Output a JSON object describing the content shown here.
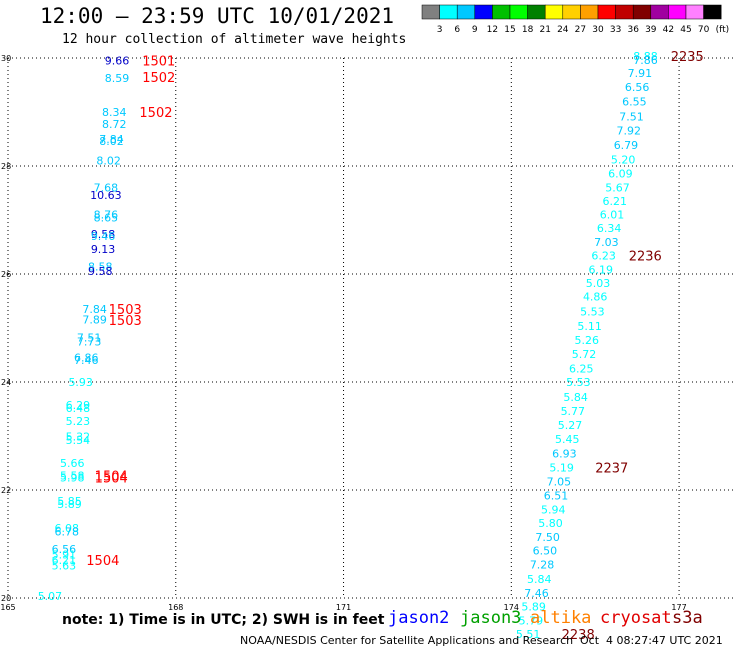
{
  "header": {
    "title": "12:00 – 23:59 UTC 10/01/2021",
    "subtitle": "12 hour collection of altimeter wave heights"
  },
  "legend": {
    "labels": [
      "3",
      "6",
      "9",
      "12",
      "15",
      "18",
      "21",
      "24",
      "27",
      "30",
      "33",
      "36",
      "39",
      "42",
      "45",
      "70"
    ],
    "unit": "(ft)",
    "colors": [
      "#808080",
      "#00ffff",
      "#00c8ff",
      "#0000ff",
      "#00c000",
      "#00ff00",
      "#008000",
      "#ffff00",
      "#ffd000",
      "#ffa000",
      "#ff0000",
      "#c00000",
      "#800000",
      "#a000a0",
      "#ff00ff",
      "#ff80ff",
      "#000000"
    ]
  },
  "footer": {
    "note": "note: 1) Time is in UTC; 2) SWH is in feet",
    "credit": "NOAA/NESDIS Center for Satellite Applications and Research",
    "stamp": "Oct  4 08:27:47 UTC 2021"
  },
  "satellites": [
    {
      "name": "jason2",
      "color": "#0000ff"
    },
    {
      "name": "jason3",
      "color": "#00a000"
    },
    {
      "name": "altika",
      "color": "#ff8000"
    },
    {
      "name": "cryosat",
      "color": "#e00000"
    },
    {
      "name": "s3a",
      "color": "#800000"
    }
  ],
  "chart_data": {
    "type": "scatter",
    "xlim": [
      165,
      178
    ],
    "ylim": [
      20,
      30
    ],
    "x_ticks": [
      165,
      168,
      171,
      174,
      177
    ],
    "x_tick_labels": [
      "165",
      "168",
      "171",
      "174",
      "177"
    ],
    "y_ticks": [
      20,
      22,
      24,
      26,
      28,
      30
    ],
    "y_tick_labels": [
      "20",
      "22",
      "24",
      "26",
      "28",
      "30"
    ],
    "grid": true,
    "observations": [
      {
        "x": 166.95,
        "y": 29.95,
        "label": "9.66",
        "color": "#0000c8"
      },
      {
        "x": 166.95,
        "y": 29.63,
        "label": "8.59",
        "color": "#00c8ff"
      },
      {
        "x": 166.9,
        "y": 29.0,
        "label": "8.34",
        "color": "#00c8ff"
      },
      {
        "x": 166.9,
        "y": 28.78,
        "label": "8.72",
        "color": "#00c8ff"
      },
      {
        "x": 166.85,
        "y": 28.5,
        "label": "7.84",
        "color": "#00c8ff"
      },
      {
        "x": 166.85,
        "y": 28.46,
        "label": "8.02",
        "color": "#00c8ff"
      },
      {
        "x": 166.8,
        "y": 28.1,
        "label": "8.02",
        "color": "#00c8ff"
      },
      {
        "x": 166.75,
        "y": 27.6,
        "label": "7.68",
        "color": "#00c8ff"
      },
      {
        "x": 166.75,
        "y": 27.46,
        "label": "10.63",
        "color": "#0000c8"
      },
      {
        "x": 166.75,
        "y": 27.1,
        "label": "8.76",
        "color": "#00c8ff"
      },
      {
        "x": 166.75,
        "y": 27.05,
        "label": "8.65",
        "color": "#00c8ff"
      },
      {
        "x": 166.7,
        "y": 26.74,
        "label": "9.58",
        "color": "#0000c8"
      },
      {
        "x": 166.7,
        "y": 26.7,
        "label": "9.46",
        "color": "#00c8ff"
      },
      {
        "x": 166.7,
        "y": 26.46,
        "label": "9.13",
        "color": "#0000c8"
      },
      {
        "x": 166.65,
        "y": 26.14,
        "label": "8.58",
        "color": "#00c8ff"
      },
      {
        "x": 166.65,
        "y": 26.06,
        "label": "9.58",
        "color": "#0000c8"
      },
      {
        "x": 166.55,
        "y": 25.35,
        "label": "7.84",
        "color": "#00c8ff"
      },
      {
        "x": 166.55,
        "y": 25.16,
        "label": "7.89",
        "color": "#00c8ff"
      },
      {
        "x": 166.45,
        "y": 24.82,
        "label": "7.51",
        "color": "#00c8ff"
      },
      {
        "x": 166.45,
        "y": 24.75,
        "label": "7.73",
        "color": "#00c8ff"
      },
      {
        "x": 166.4,
        "y": 24.45,
        "label": "6.86",
        "color": "#00c8ff"
      },
      {
        "x": 166.4,
        "y": 24.41,
        "label": "7.46",
        "color": "#00c8ff"
      },
      {
        "x": 166.3,
        "y": 24.0,
        "label": "5.93",
        "color": "#00ffff"
      },
      {
        "x": 166.25,
        "y": 23.57,
        "label": "6.29",
        "color": "#00ffff"
      },
      {
        "x": 166.25,
        "y": 23.52,
        "label": "6.48",
        "color": "#00ffff"
      },
      {
        "x": 166.25,
        "y": 23.28,
        "label": "5.23",
        "color": "#00ffff"
      },
      {
        "x": 166.25,
        "y": 22.99,
        "label": "5.32",
        "color": "#00ffff"
      },
      {
        "x": 166.25,
        "y": 22.93,
        "label": "5.54",
        "color": "#00ffff"
      },
      {
        "x": 166.15,
        "y": 22.5,
        "label": "5.66",
        "color": "#00ffff"
      },
      {
        "x": 166.15,
        "y": 22.27,
        "label": "5.58",
        "color": "#00ffff"
      },
      {
        "x": 166.15,
        "y": 22.23,
        "label": "5.98",
        "color": "#00ffff"
      },
      {
        "x": 166.1,
        "y": 21.8,
        "label": "5.85",
        "color": "#00ffff"
      },
      {
        "x": 166.1,
        "y": 21.74,
        "label": "5.89",
        "color": "#00ffff"
      },
      {
        "x": 166.05,
        "y": 21.3,
        "label": "6.08",
        "color": "#00ffff"
      },
      {
        "x": 166.05,
        "y": 21.23,
        "label": "6.78",
        "color": "#00c8ff"
      },
      {
        "x": 166.0,
        "y": 20.91,
        "label": "6.56",
        "color": "#00c8ff"
      },
      {
        "x": 166.0,
        "y": 20.81,
        "label": "5.91",
        "color": "#00ffff"
      },
      {
        "x": 166.0,
        "y": 20.7,
        "label": "6.21",
        "color": "#00ffff"
      },
      {
        "x": 166.0,
        "y": 20.6,
        "label": "5.63",
        "color": "#00ffff"
      },
      {
        "x": 165.75,
        "y": 20.04,
        "label": "5.07",
        "color": "#00ffff"
      },
      {
        "x": 176.4,
        "y": 30.04,
        "label": "8.88",
        "color": "#00ffff"
      },
      {
        "x": 176.4,
        "y": 29.96,
        "label": "7.86",
        "color": "#00c8ff"
      },
      {
        "x": 176.3,
        "y": 29.72,
        "label": "7.91",
        "color": "#00c8ff"
      },
      {
        "x": 176.25,
        "y": 29.46,
        "label": "6.56",
        "color": "#00c8ff"
      },
      {
        "x": 176.2,
        "y": 29.19,
        "label": "6.55",
        "color": "#00c8ff"
      },
      {
        "x": 176.15,
        "y": 28.92,
        "label": "7.51",
        "color": "#00c8ff"
      },
      {
        "x": 176.1,
        "y": 28.66,
        "label": "7.92",
        "color": "#00c8ff"
      },
      {
        "x": 176.05,
        "y": 28.39,
        "label": "6.79",
        "color": "#00c8ff"
      },
      {
        "x": 176.0,
        "y": 28.12,
        "label": "5.20",
        "color": "#00ffff"
      },
      {
        "x": 175.95,
        "y": 27.86,
        "label": "6.09",
        "color": "#00ffff"
      },
      {
        "x": 175.9,
        "y": 27.6,
        "label": "5.67",
        "color": "#00ffff"
      },
      {
        "x": 175.85,
        "y": 27.35,
        "label": "6.21",
        "color": "#00ffff"
      },
      {
        "x": 175.8,
        "y": 27.1,
        "label": "6.01",
        "color": "#00ffff"
      },
      {
        "x": 175.75,
        "y": 26.85,
        "label": "6.34",
        "color": "#00ffff"
      },
      {
        "x": 175.7,
        "y": 26.59,
        "label": "7.03",
        "color": "#00c8ff"
      },
      {
        "x": 175.65,
        "y": 26.34,
        "label": "6.23",
        "color": "#00ffff"
      },
      {
        "x": 175.6,
        "y": 26.08,
        "label": "6.19",
        "color": "#00ffff"
      },
      {
        "x": 175.55,
        "y": 25.83,
        "label": "5.03",
        "color": "#00ffff"
      },
      {
        "x": 175.5,
        "y": 25.58,
        "label": "4.86",
        "color": "#00ffff"
      },
      {
        "x": 175.45,
        "y": 25.31,
        "label": "5.53",
        "color": "#00ffff"
      },
      {
        "x": 175.4,
        "y": 25.04,
        "label": "5.11",
        "color": "#00ffff"
      },
      {
        "x": 175.35,
        "y": 24.78,
        "label": "5.26",
        "color": "#00ffff"
      },
      {
        "x": 175.3,
        "y": 24.52,
        "label": "5.72",
        "color": "#00ffff"
      },
      {
        "x": 175.25,
        "y": 24.25,
        "label": "6.25",
        "color": "#00ffff"
      },
      {
        "x": 175.2,
        "y": 24.0,
        "label": "5.53",
        "color": "#00ffff"
      },
      {
        "x": 175.15,
        "y": 23.72,
        "label": "5.84",
        "color": "#00ffff"
      },
      {
        "x": 175.1,
        "y": 23.46,
        "label": "5.77",
        "color": "#00ffff"
      },
      {
        "x": 175.05,
        "y": 23.2,
        "label": "5.27",
        "color": "#00ffff"
      },
      {
        "x": 175.0,
        "y": 22.94,
        "label": "5.45",
        "color": "#00ffff"
      },
      {
        "x": 174.95,
        "y": 22.68,
        "label": "6.93",
        "color": "#00c8ff"
      },
      {
        "x": 174.9,
        "y": 22.42,
        "label": "5.19",
        "color": "#00ffff"
      },
      {
        "x": 174.85,
        "y": 22.16,
        "label": "7.05",
        "color": "#00c8ff"
      },
      {
        "x": 174.8,
        "y": 21.9,
        "label": "6.51",
        "color": "#00c8ff"
      },
      {
        "x": 174.75,
        "y": 21.64,
        "label": "5.94",
        "color": "#00ffff"
      },
      {
        "x": 174.7,
        "y": 21.39,
        "label": "5.80",
        "color": "#00ffff"
      },
      {
        "x": 174.65,
        "y": 21.13,
        "label": "7.50",
        "color": "#00c8ff"
      },
      {
        "x": 174.6,
        "y": 20.88,
        "label": "6.50",
        "color": "#00c8ff"
      },
      {
        "x": 174.55,
        "y": 20.62,
        "label": "7.28",
        "color": "#00c8ff"
      },
      {
        "x": 174.5,
        "y": 20.35,
        "label": "5.84",
        "color": "#00ffff"
      },
      {
        "x": 174.45,
        "y": 20.09,
        "label": "7.46",
        "color": "#00c8ff"
      },
      {
        "x": 174.4,
        "y": 19.84,
        "label": "5.89",
        "color": "#00ffff"
      },
      {
        "x": 174.35,
        "y": 19.58,
        "label": "5.79",
        "color": "#00ffff"
      },
      {
        "x": 174.3,
        "y": 19.33,
        "label": "5.51",
        "color": "#00ffff"
      }
    ],
    "time_labels": [
      {
        "x": 167.4,
        "y": 29.95,
        "label": "1501",
        "color": "#ff0000"
      },
      {
        "x": 167.4,
        "y": 29.65,
        "label": "1502",
        "color": "#ff0000"
      },
      {
        "x": 167.35,
        "y": 29.0,
        "label": "1502",
        "color": "#ff0000"
      },
      {
        "x": 166.8,
        "y": 25.35,
        "label": "1503",
        "color": "#ff0000"
      },
      {
        "x": 166.8,
        "y": 25.15,
        "label": "1503",
        "color": "#ff0000"
      },
      {
        "x": 166.55,
        "y": 22.27,
        "label": "1504",
        "color": "#ff0000"
      },
      {
        "x": 166.55,
        "y": 22.23,
        "label": "1504",
        "color": "#ff0000"
      },
      {
        "x": 166.4,
        "y": 20.7,
        "label": "1504",
        "color": "#ff0000"
      },
      {
        "x": 176.85,
        "y": 30.04,
        "label": "2235",
        "color": "#800000"
      },
      {
        "x": 176.1,
        "y": 26.34,
        "label": "2236",
        "color": "#800000"
      },
      {
        "x": 175.5,
        "y": 22.42,
        "label": "2237",
        "color": "#800000"
      },
      {
        "x": 174.9,
        "y": 19.33,
        "label": "2238",
        "color": "#800000"
      }
    ]
  }
}
